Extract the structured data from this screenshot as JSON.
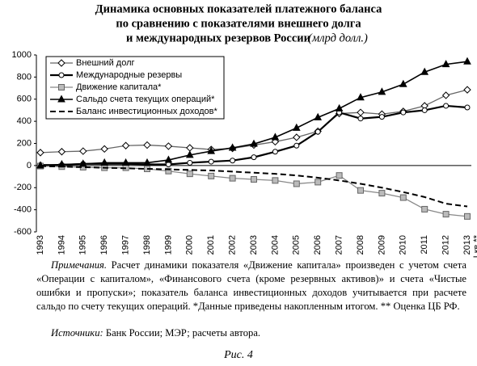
{
  "chart_data": {
    "type": "line",
    "title": [
      "Динамика основных показателей платежного баланса",
      "по сравнению с показателями внешнего долга",
      "и международных резервов России"
    ],
    "title_unit": "(млрд долл.)",
    "categories": [
      "1993",
      "1994",
      "1995",
      "1996",
      "1997",
      "1998",
      "1999",
      "2000",
      "2001",
      "2002",
      "2003",
      "2004",
      "2005",
      "2006",
      "2007",
      "2008",
      "2009",
      "2010",
      "2011",
      "2012",
      "2013"
    ],
    "last_category_note": "I кв.**",
    "ylim": [
      -600,
      1000
    ],
    "yticks": [
      -600,
      -400,
      -200,
      0,
      200,
      400,
      600,
      800,
      1000
    ],
    "series": [
      {
        "name": "Внешний долг",
        "color": "#666666",
        "marker": "diamond",
        "values": [
          117,
          125,
          130,
          150,
          180,
          185,
          175,
          160,
          145,
          155,
          185,
          215,
          255,
          310,
          470,
          480,
          465,
          490,
          540,
          635,
          685
        ]
      },
      {
        "name": "Международные резервы",
        "color": "#000000",
        "marker": "circle",
        "values": [
          5,
          5,
          15,
          15,
          15,
          10,
          10,
          25,
          35,
          45,
          75,
          125,
          180,
          305,
          480,
          425,
          440,
          480,
          500,
          540,
          525
        ]
      },
      {
        "name": "Движение капитала*",
        "color": "#888888",
        "marker": "square",
        "values": [
          -5,
          -10,
          -15,
          -20,
          -20,
          -30,
          -50,
          -75,
          -95,
          -115,
          -125,
          -135,
          -165,
          -150,
          -90,
          -225,
          -250,
          -290,
          -395,
          -440,
          -460
        ]
      },
      {
        "name": "Сальдо счета текущих операций*",
        "color": "#000000",
        "marker": "triangle",
        "values": [
          0,
          10,
          15,
          25,
          25,
          25,
          50,
          95,
          130,
          160,
          195,
          255,
          340,
          435,
          515,
          615,
          665,
          735,
          845,
          915,
          940
        ]
      },
      {
        "name": "Баланс инвестиционных доходов*",
        "color": "#000000",
        "marker": "dashed",
        "values": [
          -5,
          -10,
          -15,
          -20,
          -25,
          -30,
          -35,
          -40,
          -45,
          -55,
          -65,
          -75,
          -90,
          -110,
          -135,
          -165,
          -200,
          -240,
          -285,
          -345,
          -370
        ]
      }
    ]
  },
  "notes_label": "Примечания.",
  "notes": "Расчет динамики показателя «Движение капитала» произведен с учетом счета «Операции с капиталом», «Финансового счета (кроме резервных активов)» и счета «Чистые ошибки и пропуски»; показатель баланса инвестиционных доходов учитывается при расчете сальдо по счету текущих операций. *Данные приведены накопленным итогом. ** Оценка ЦБ РФ.",
  "sources_label": "Источники:",
  "sources": "Банк России; МЭР; расчеты автора.",
  "caption": "Рис. 4"
}
